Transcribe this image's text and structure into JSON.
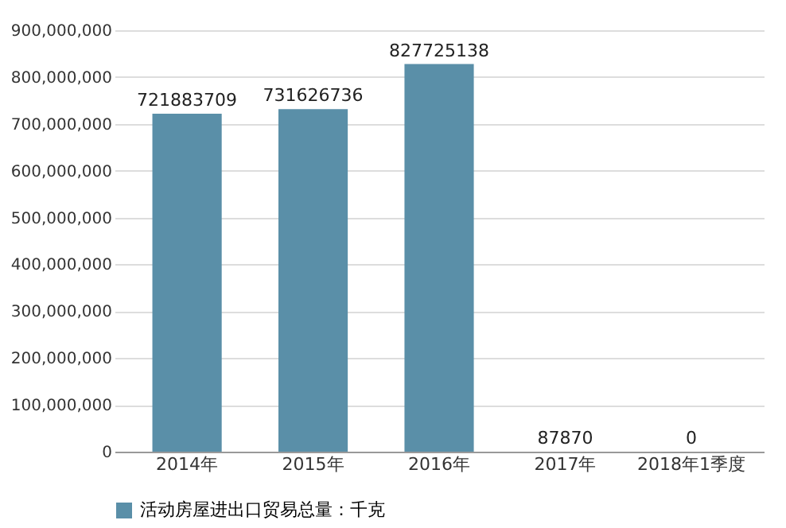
{
  "chart_data": {
    "type": "bar",
    "categories": [
      "2014年",
      "2015年",
      "2016年",
      "2017年",
      "2018年1季度"
    ],
    "series": [
      {
        "name": "活动房屋进出口贸易总量：千克",
        "color": "#5a8fa8",
        "values": [
          721883709,
          731626736,
          827725138,
          87870,
          0
        ]
      }
    ],
    "ylim": [
      0,
      900000000
    ],
    "yticks": [
      {
        "value": 0,
        "label": "0"
      },
      {
        "value": 100000000,
        "label": "100,000,000"
      },
      {
        "value": 200000000,
        "label": "200,000,000"
      },
      {
        "value": 300000000,
        "label": "300,000,000"
      },
      {
        "value": 400000000,
        "label": "400,000,000"
      },
      {
        "value": 500000000,
        "label": "500,000,000"
      },
      {
        "value": 600000000,
        "label": "600,000,000"
      },
      {
        "value": 700000000,
        "label": "700,000,000"
      },
      {
        "value": 800000000,
        "label": "800,000,000"
      },
      {
        "value": 900000000,
        "label": "900,000,000"
      }
    ],
    "grid": "y",
    "legend": "bottom",
    "data_labels": true
  }
}
